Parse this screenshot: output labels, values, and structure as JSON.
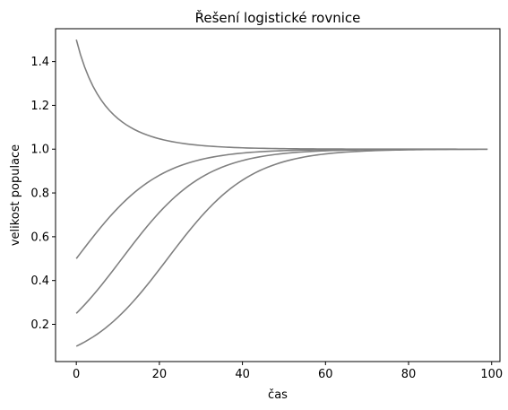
{
  "chart_data": {
    "type": "line",
    "title": "Řešení logistické rovnice",
    "xlabel": "čas",
    "ylabel": "velikost populace",
    "xlim": [
      -5,
      102
    ],
    "ylim": [
      0.03,
      1.55
    ],
    "xticks": [
      0,
      20,
      40,
      60,
      80,
      100
    ],
    "yticks": [
      0.2,
      0.4,
      0.6,
      0.8,
      1.0,
      1.2,
      1.4
    ],
    "grid": false,
    "legend": "none",
    "line_color": "#808080",
    "x_start": 0,
    "x_end": 99,
    "x_step": 1,
    "model": {
      "carrying_capacity": 1.0,
      "growth_rate": 0.1
    },
    "series": [
      {
        "initial_value": 1.5
      },
      {
        "initial_value": 0.5
      },
      {
        "initial_value": 0.25
      },
      {
        "initial_value": 0.1
      }
    ]
  }
}
